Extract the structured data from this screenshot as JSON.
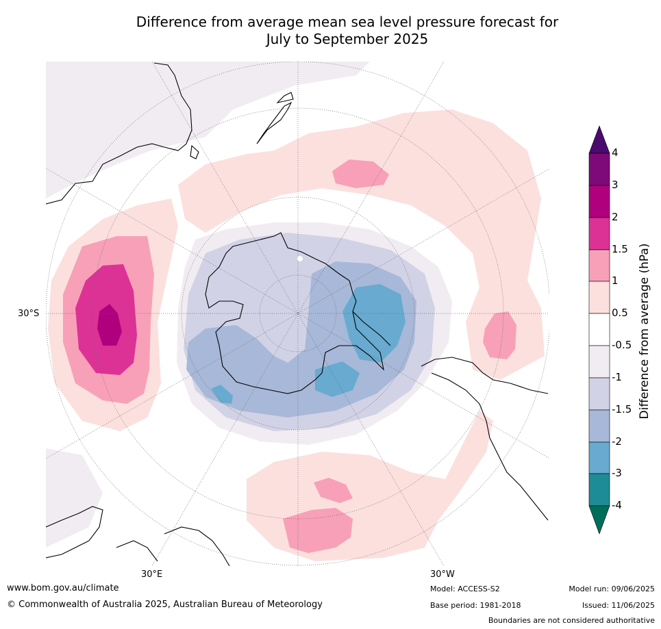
{
  "title_line1": "Difference from average mean sea level pressure forecast for",
  "title_line2": "July to September 2025",
  "colorbar": {
    "title": "Difference from average (hPa)",
    "tick_labels": [
      "4",
      "3",
      "2",
      "1.5",
      "1",
      "0.5",
      "-0.5",
      "-1",
      "-1.5",
      "-2",
      "-3",
      "-4"
    ],
    "colors": {
      "gt4": "#4b0a6e",
      "3to4": "#7d0a78",
      "2to3": "#b0007e",
      "1.5to2": "#dc3296",
      "1to1.5": "#f8a0b8",
      "0.5to1": "#fbe0de",
      "neutral": "#ffffff",
      "-1to-0.5": "#f1ecf2",
      "-1.5to-1": "#d2d2e6",
      "-2to-1.5": "#a8b8d8",
      "-3to-2": "#68aad0",
      "-4to-3": "#1e8c96",
      "lt-4": "#006e5a"
    }
  },
  "axis_labels": {
    "lat": "30°S",
    "lon_left": "30°E",
    "lon_right": "30°W"
  },
  "footer": {
    "url": "www.bom.gov.au/climate",
    "copyright": "© Commonwealth of Australia 2025, Australian Bureau of Meteorology",
    "model": "Model: ACCESS-S2",
    "base_period": "Base period: 1981-2018",
    "model_run": "Model run: 09/06/2025",
    "issued": "Issued: 11/06/2025",
    "disclaimer": "Boundaries are not considered authoritative"
  }
}
